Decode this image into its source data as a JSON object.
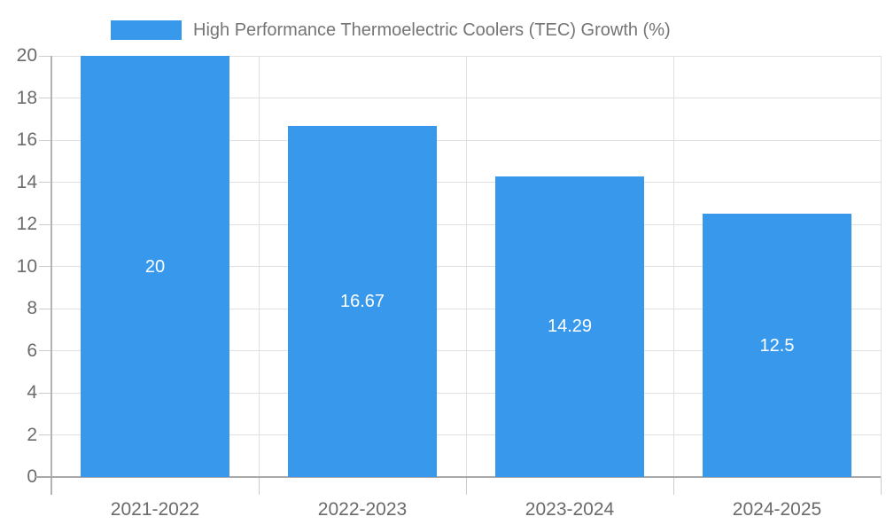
{
  "legend": {
    "label": "High Performance Thermoelectric Coolers (TEC) Growth (%)",
    "swatch_color": "#3899ec"
  },
  "chart_data": {
    "type": "bar",
    "title": "High Performance Thermoelectric Coolers (TEC) Growth (%)",
    "categories": [
      "2021-2022",
      "2022-2023",
      "2023-2024",
      "2024-2025"
    ],
    "values": [
      20,
      16.67,
      14.29,
      12.5
    ],
    "bar_labels": [
      "20",
      "16.67",
      "14.29",
      "12.5"
    ],
    "xlabel": "",
    "ylabel": "",
    "ylim": [
      0,
      20
    ],
    "ytick_step": 2,
    "ytick_labels": [
      "0",
      "2",
      "4",
      "6",
      "8",
      "10",
      "12",
      "14",
      "16",
      "18",
      "20"
    ],
    "grid": true,
    "legend_position": "top",
    "bar_color": "#3899ec",
    "bar_label_color": "#ffffff"
  },
  "colors": {
    "background": "#ffffff",
    "bar": "#3899ec",
    "legend_text": "#757575",
    "axis_text": "#6b6b6b",
    "gridline": "#e0e0e0",
    "axis_line": "#b3b3b3",
    "baseline": "#a9a9a9",
    "outer_tick": "#cccccc"
  }
}
